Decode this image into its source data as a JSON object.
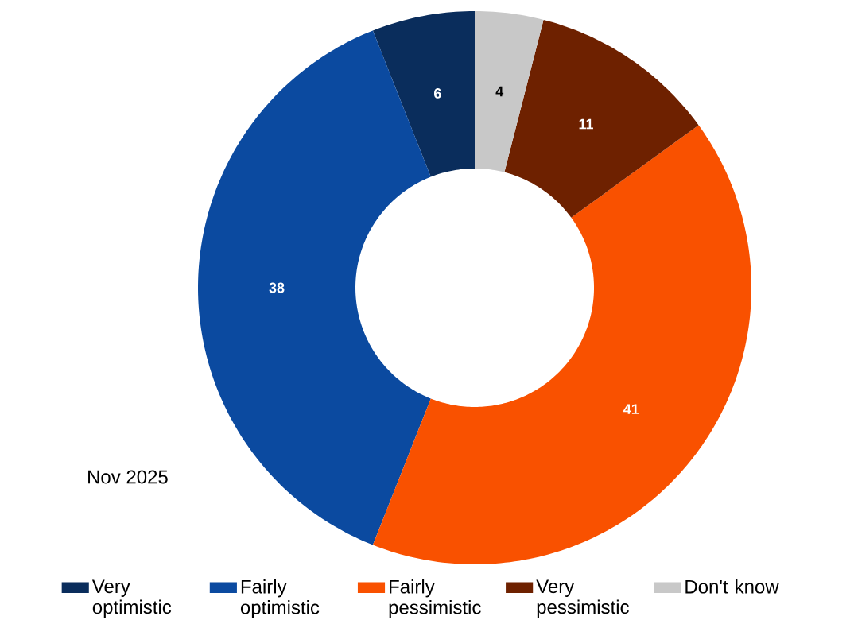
{
  "chart_data": {
    "type": "donut",
    "categories": [
      "Very optimistic",
      "Fairly optimistic",
      "Fairly pessimistic",
      "Very pessimistic",
      "Don't know"
    ],
    "values": [
      6,
      38,
      41,
      11,
      4
    ],
    "colors": [
      "#0a2d5c",
      "#0b4aa0",
      "#f95100",
      "#6e2100",
      "#c8c8c8"
    ],
    "data_labels": true,
    "legend": "bottom",
    "annotations": [
      "Nov 2025"
    ]
  }
}
